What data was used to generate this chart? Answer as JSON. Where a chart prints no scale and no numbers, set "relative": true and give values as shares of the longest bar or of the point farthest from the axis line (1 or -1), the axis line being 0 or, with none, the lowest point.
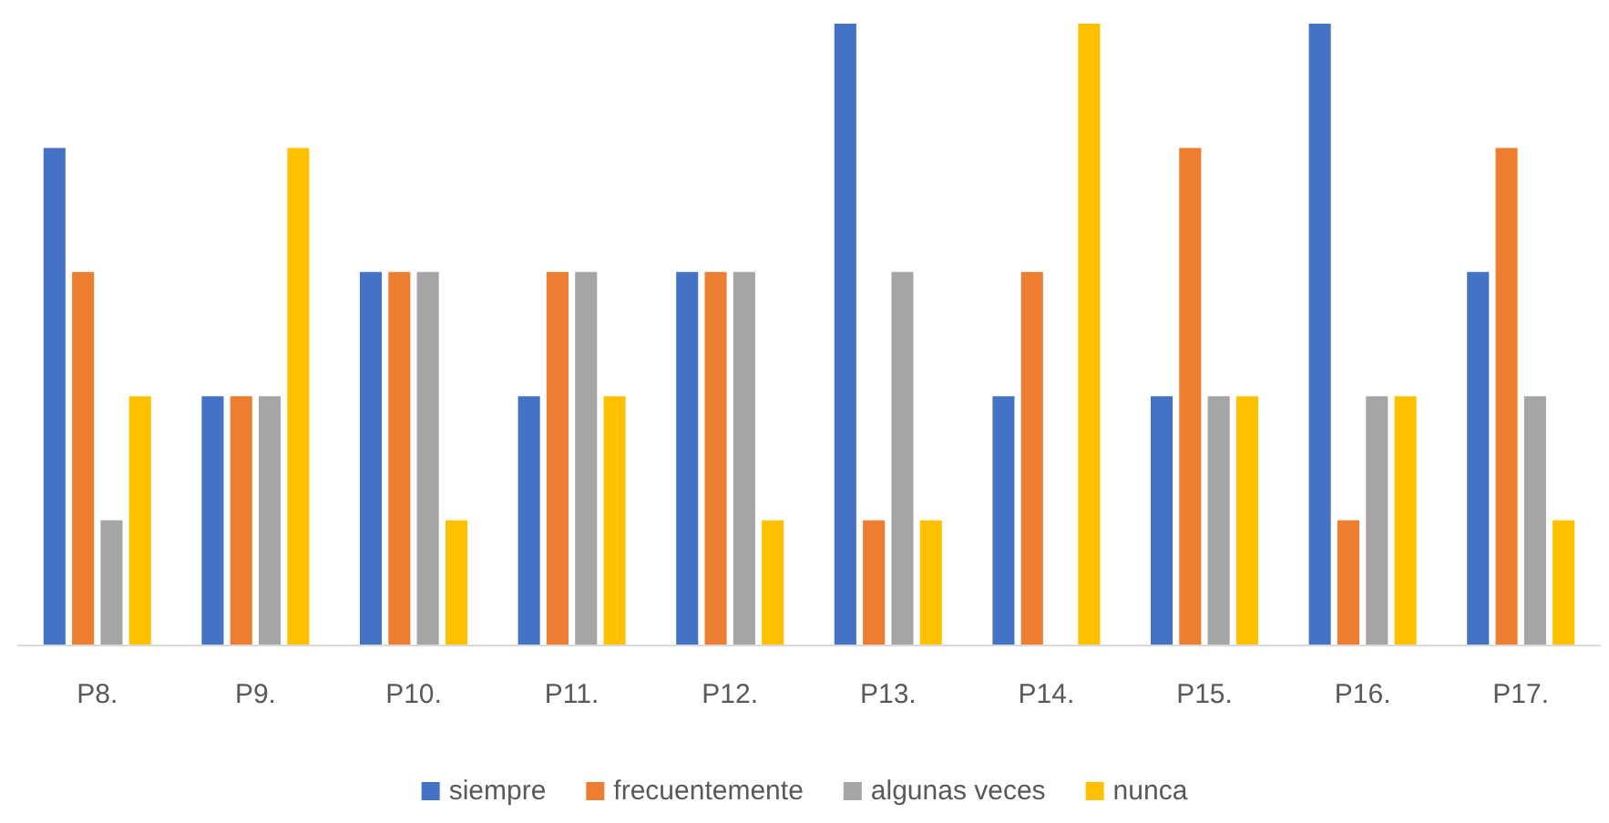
{
  "chart_data": {
    "type": "bar",
    "relative": true,
    "categories": [
      "P8.",
      "P9.",
      "P10.",
      "P11.",
      "P12.",
      "P13.",
      "P14.",
      "P15.",
      "P16.",
      "P17."
    ],
    "series": [
      {
        "name": "siempre",
        "color": "#4472c4",
        "values": [
          0.8,
          0.4,
          0.6,
          0.4,
          0.6,
          1,
          0.4,
          0.4,
          1,
          0.6
        ]
      },
      {
        "name": "frecuentemente",
        "color": "#ed7d31",
        "values": [
          0.6,
          0.4,
          0.6,
          0.6,
          0.6,
          0.2,
          0.6,
          0.8,
          0.2,
          0.8
        ]
      },
      {
        "name": "algunas veces",
        "color": "#a5a5a5",
        "values": [
          0.2,
          0.4,
          0.6,
          0.6,
          0.6,
          0.6,
          0,
          0.4,
          0.4,
          0.4
        ]
      },
      {
        "name": "nunca",
        "color": "#ffc000",
        "values": [
          0.4,
          0.8,
          0.2,
          0.4,
          0.2,
          0.2,
          1,
          0.4,
          0.4,
          0.2
        ]
      }
    ],
    "legend": "bottom"
  }
}
